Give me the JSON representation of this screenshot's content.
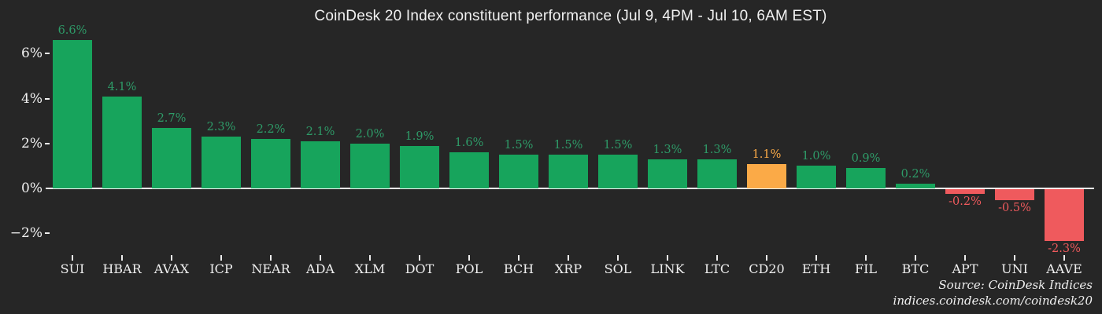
{
  "chart_data": {
    "type": "bar",
    "title": "CoinDesk 20 Index constituent performance (Jul 9, 4PM - Jul 10, 6AM EST)",
    "categories": [
      "SUI",
      "HBAR",
      "AVAX",
      "ICP",
      "NEAR",
      "ADA",
      "XLM",
      "DOT",
      "POL",
      "BCH",
      "XRP",
      "SOL",
      "LINK",
      "LTC",
      "CD20",
      "ETH",
      "FIL",
      "BTC",
      "APT",
      "UNI",
      "AAVE"
    ],
    "values": [
      6.6,
      4.1,
      2.7,
      2.3,
      2.2,
      2.1,
      2.0,
      1.9,
      1.6,
      1.5,
      1.5,
      1.5,
      1.3,
      1.3,
      1.1,
      1.0,
      0.9,
      0.2,
      -0.2,
      -0.5,
      -2.3
    ],
    "value_labels": [
      "6.6%",
      "4.1%",
      "2.7%",
      "2.3%",
      "2.2%",
      "2.1%",
      "2.0%",
      "1.9%",
      "1.6%",
      "1.5%",
      "1.5%",
      "1.5%",
      "1.3%",
      "1.3%",
      "1.1%",
      "1.0%",
      "0.9%",
      "0.2%",
      "-0.2%",
      "-0.5%",
      "-2.3%"
    ],
    "highlight_category": "CD20",
    "y_ticks": [
      {
        "label": "6%",
        "value": 6
      },
      {
        "label": "4%",
        "value": 4
      },
      {
        "label": "2%",
        "value": 2
      },
      {
        "label": "0%",
        "value": 0
      },
      {
        "label": "−2%",
        "value": -2
      }
    ],
    "ylim": [
      -2.9,
      7.0
    ],
    "xlabel": "",
    "ylabel": "",
    "grid": false,
    "legend": "none",
    "colors": {
      "positive_bar": "#17a45c",
      "negative_bar": "#ef5a5d",
      "highlight_bar": "#fbaa47",
      "positive_label": "#2e9b68",
      "negative_label": "#ef5a5d",
      "highlight_label": "#fbaa47",
      "background": "#262626",
      "axis_line": "#f7f7f7",
      "tick_text": "#f0f0f0"
    }
  },
  "source": {
    "line1": "Source: CoinDesk Indices",
    "line2": "indices.coindesk.com/coindesk20"
  }
}
